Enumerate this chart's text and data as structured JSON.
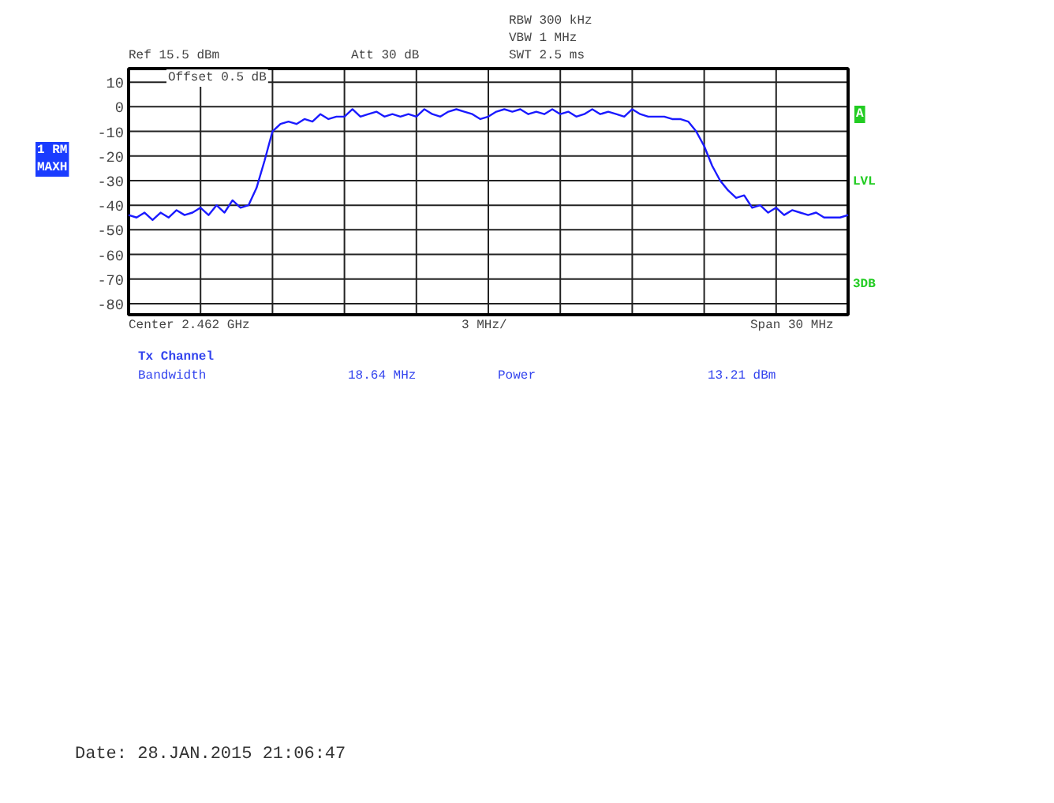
{
  "chart_data": {
    "type": "line",
    "categories": [
      null,
      null,
      null,
      null,
      null,
      null,
      null,
      null,
      null,
      null,
      null,
      null,
      null,
      null,
      null,
      null,
      null,
      null,
      null,
      null,
      null,
      null,
      null,
      null,
      null,
      null,
      null,
      null,
      null,
      null,
      null,
      null,
      null,
      null,
      null,
      null,
      null,
      null,
      null,
      null,
      null,
      null,
      null,
      null,
      null,
      null,
      null,
      null,
      null,
      null,
      null,
      null,
      null,
      null,
      null,
      null,
      null,
      null,
      null,
      null,
      null,
      null,
      null,
      null,
      null,
      null,
      null,
      null,
      null,
      null,
      null,
      null,
      null,
      null,
      null,
      null,
      null,
      null,
      null,
      null,
      null,
      null,
      null,
      null,
      null,
      null,
      null,
      null,
      null,
      null,
      null
    ],
    "series": [
      {
        "color": "#1a1aff",
        "values": [
          -44,
          -45,
          -43,
          -46,
          -43,
          -45,
          -42,
          -44,
          -43,
          -41,
          -44,
          -40,
          -43,
          -38,
          -41,
          -40,
          -33,
          -22,
          -10,
          -7,
          -6,
          -7,
          -5,
          -6,
          -3,
          -5,
          -4,
          -4,
          -1,
          -4,
          -3,
          -2,
          -4,
          -3,
          -4,
          -3,
          -4,
          -1,
          -3,
          -4,
          -2,
          -1,
          -2,
          -3,
          -5,
          -4,
          -2,
          -1,
          -2,
          -1,
          -3,
          -2,
          -3,
          -1,
          -3,
          -2,
          -4,
          -3,
          -1,
          -3,
          -2,
          -3,
          -4,
          -1,
          -3,
          -4,
          -4,
          -4,
          -5,
          -5,
          -6,
          -10,
          -16,
          -24,
          -30,
          -34,
          -37,
          -36,
          -41,
          -40,
          -43,
          -41,
          -44,
          -42,
          -43,
          -44,
          -43,
          -45,
          -45,
          -45,
          -44
        ]
      }
    ],
    "ylim": [
      -84.5,
      15.5
    ],
    "yticks": [
      10,
      0,
      -10,
      -20,
      -30,
      -40,
      -50,
      -60,
      -70,
      -80
    ],
    "tick_labels": "y",
    "grid": true,
    "marker": "none",
    "line_style": "solid",
    "annotations": [
      "Ref 15.5 dBm",
      "Att 30 dB",
      "RBW 300 kHz",
      "VBW 1 MHz",
      "SWT 2.5 ms",
      "Offset 0.5 dB",
      "1 RM",
      "MAXH",
      "A",
      "LVL",
      "3DB",
      "Center 2.462 GHz",
      "3 MHz/",
      "Span 30 MHz",
      "Tx Channel",
      "Bandwidth",
      "18.64 MHz",
      "Power",
      "13.21 dBm",
      "Date: 28.JAN.2015  21:06:47"
    ]
  }
}
